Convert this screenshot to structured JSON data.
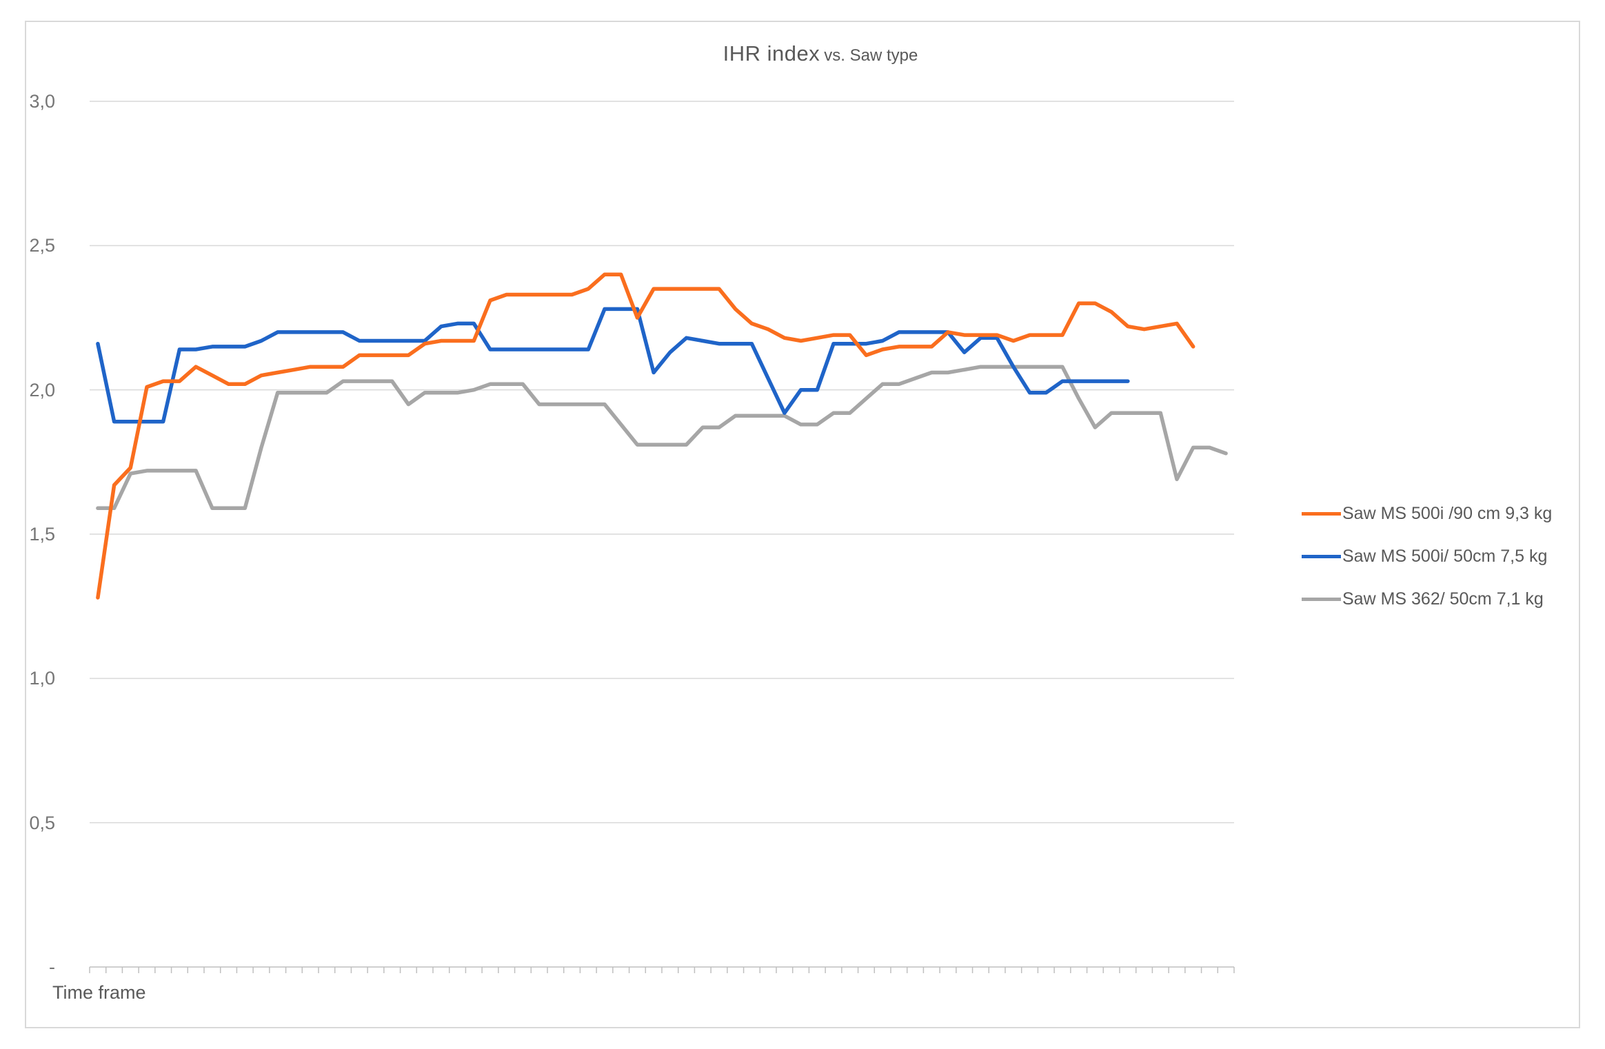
{
  "page": {
    "background": "#ffffff",
    "frame_border_color": "#d9d9d9"
  },
  "chart": {
    "title_main": "IHR index",
    "title_sub": "vs. Saw type",
    "x_axis_label": "Time frame"
  },
  "colors": {
    "orange_series": "#fa6e1e",
    "blue_series": "#1f64c8",
    "gray_series": "#a6a6a6",
    "gridline": "#d9d9d9",
    "axis_line": "#bfbfbf",
    "title_text": "#595959",
    "tick_text": "#767676"
  },
  "legend": {
    "position": "right",
    "items": [
      {
        "label": "Saw MS 500i /90 cm 9,3 kg",
        "color": "#fa6e1e"
      },
      {
        "label": "Saw MS 500i/ 50cm 7,5 kg",
        "color": "#1f64c8"
      },
      {
        "label": "Saw MS 362/ 50cm 7,1 kg",
        "color": "#a6a6a6"
      }
    ]
  },
  "chart_data": {
    "type": "line",
    "title": "IHR index vs. Saw type",
    "xlabel": "Time frame",
    "ylabel": "IHR index",
    "ylim": [
      0,
      3.0
    ],
    "yticks": [
      0,
      0.5,
      1.0,
      1.5,
      2.0,
      2.5,
      3.0
    ],
    "ytick_labels": [
      "-",
      "0,5",
      "1,0",
      "1,5",
      "2,0",
      "2,5",
      "3,0"
    ],
    "x_categories_labeled": false,
    "x_count": 70,
    "grid": true,
    "legend_position": "right",
    "series": [
      {
        "name": "Saw MS 500i /90 cm 9,3 kg",
        "color": "#fa6e1e",
        "values": [
          1.28,
          1.67,
          1.73,
          2.01,
          2.03,
          2.03,
          2.08,
          2.05,
          2.02,
          2.02,
          2.05,
          2.06,
          2.07,
          2.08,
          2.08,
          2.08,
          2.12,
          2.12,
          2.12,
          2.12,
          2.16,
          2.17,
          2.17,
          2.17,
          2.31,
          2.33,
          2.33,
          2.33,
          2.33,
          2.33,
          2.35,
          2.4,
          2.4,
          2.25,
          2.35,
          2.35,
          2.35,
          2.35,
          2.35,
          2.28,
          2.23,
          2.21,
          2.18,
          2.17,
          2.18,
          2.19,
          2.19,
          2.12,
          2.14,
          2.15,
          2.15,
          2.15,
          2.2,
          2.19,
          2.19,
          2.19,
          2.17,
          2.19,
          2.19,
          2.19,
          2.3,
          2.3,
          2.27,
          2.22,
          2.21,
          2.22,
          2.23,
          2.15
        ]
      },
      {
        "name": "Saw MS 500i/ 50cm 7,5 kg",
        "color": "#1f64c8",
        "values": [
          2.16,
          1.89,
          1.89,
          1.89,
          1.89,
          2.14,
          2.14,
          2.15,
          2.15,
          2.15,
          2.17,
          2.2,
          2.2,
          2.2,
          2.2,
          2.2,
          2.17,
          2.17,
          2.17,
          2.17,
          2.17,
          2.22,
          2.23,
          2.23,
          2.14,
          2.14,
          2.14,
          2.14,
          2.14,
          2.14,
          2.14,
          2.28,
          2.28,
          2.28,
          2.06,
          2.13,
          2.18,
          2.17,
          2.16,
          2.16,
          2.16,
          2.04,
          1.92,
          2.0,
          2.0,
          2.16,
          2.16,
          2.16,
          2.17,
          2.2,
          2.2,
          2.2,
          2.2,
          2.13,
          2.18,
          2.18,
          2.08,
          1.99,
          1.99,
          2.03,
          2.03,
          2.03,
          2.03,
          2.03
        ]
      },
      {
        "name": "Saw MS 362/ 50cm 7,1 kg",
        "color": "#a6a6a6",
        "values": [
          1.59,
          1.59,
          1.71,
          1.72,
          1.72,
          1.72,
          1.72,
          1.59,
          1.59,
          1.59,
          1.8,
          1.99,
          1.99,
          1.99,
          1.99,
          2.03,
          2.03,
          2.03,
          2.03,
          1.95,
          1.99,
          1.99,
          1.99,
          2.0,
          2.02,
          2.02,
          2.02,
          1.95,
          1.95,
          1.95,
          1.95,
          1.95,
          1.88,
          1.81,
          1.81,
          1.81,
          1.81,
          1.87,
          1.87,
          1.91,
          1.91,
          1.91,
          1.91,
          1.88,
          1.88,
          1.92,
          1.92,
          1.97,
          2.02,
          2.02,
          2.04,
          2.06,
          2.06,
          2.07,
          2.08,
          2.08,
          2.08,
          2.08,
          2.08,
          2.08,
          1.97,
          1.87,
          1.92,
          1.92,
          1.92,
          1.92,
          1.69,
          1.8,
          1.8,
          1.78
        ]
      }
    ]
  }
}
